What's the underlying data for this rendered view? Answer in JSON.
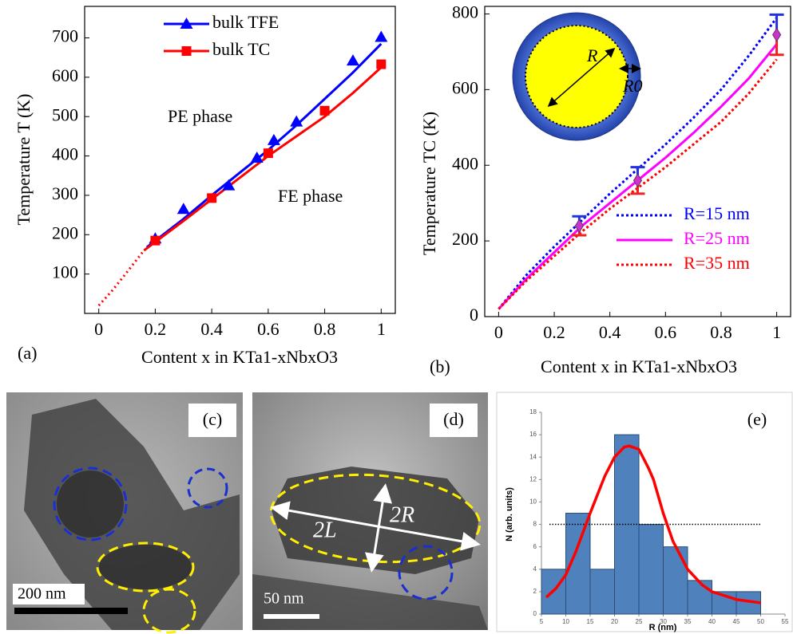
{
  "chart_data": [
    {
      "type": "line",
      "panel": "(a)",
      "xlabel": "Content  x  in KTa1-xNbxO3",
      "ylabel": "Temperature T (K)",
      "xlim": [
        -0.05,
        1.05
      ],
      "ylim": [
        0,
        780
      ],
      "xticks": [
        0,
        0.2,
        0.4,
        0.6,
        0.8,
        1
      ],
      "yticks": [
        100,
        200,
        300,
        400,
        500,
        600,
        700
      ],
      "annotations": [
        "PE phase",
        "FE phase"
      ],
      "series": [
        {
          "name": "bulk TFE",
          "color": "#0000ff",
          "marker": "triangle",
          "x": [
            0.2,
            0.3,
            0.46,
            0.56,
            0.62,
            0.7,
            0.9,
            1
          ],
          "values": [
            190,
            265,
            325,
            395,
            440,
            487,
            642,
            702
          ]
        },
        {
          "name": "bulk TC",
          "color": "#ff0000",
          "marker": "square",
          "x": [
            0.2,
            0.4,
            0.6,
            0.8,
            1
          ],
          "values": [
            185,
            293,
            407,
            515,
            633
          ]
        }
      ],
      "fits": [
        {
          "color": "#0000ff",
          "x": [
            0.17,
            0.3,
            0.4,
            0.5,
            0.6,
            0.7,
            0.8,
            0.9,
            1
          ],
          "values": [
            168,
            240,
            300,
            358,
            415,
            478,
            545,
            612,
            685
          ]
        },
        {
          "color": "#ff0000",
          "x": [
            0.16,
            0.3,
            0.4,
            0.5,
            0.6,
            0.7,
            0.8,
            0.9,
            1
          ],
          "values": [
            160,
            235,
            290,
            345,
            400,
            450,
            500,
            560,
            625
          ]
        },
        {
          "color": "#ff0000",
          "dash": true,
          "x": [
            0,
            0.05,
            0.1,
            0.16
          ],
          "values": [
            20,
            60,
            105,
            160
          ]
        }
      ]
    },
    {
      "type": "line",
      "panel": "(b)",
      "xlabel": "Content x in KTa1-xNbxO3",
      "ylabel": "Temperature TC   (K)",
      "xlim": [
        -0.05,
        1.05
      ],
      "ylim": [
        0,
        820
      ],
      "xticks": [
        0,
        0.2,
        0.4,
        0.6,
        0.8,
        1
      ],
      "yticks": [
        0,
        200,
        400,
        600,
        800
      ],
      "inset_labels": [
        "R",
        "R0"
      ],
      "series": [
        {
          "name": "R=15 nm",
          "color": "#0000ff",
          "dash": true,
          "x": [
            0,
            0.1,
            0.2,
            0.3,
            0.4,
            0.5,
            0.6,
            0.7,
            0.8,
            0.9,
            1
          ],
          "values": [
            20,
            110,
            185,
            255,
            325,
            390,
            455,
            525,
            600,
            690,
            790
          ]
        },
        {
          "name": "R=25 nm",
          "color": "#ff00ff",
          "dash": false,
          "x": [
            0,
            0.1,
            0.2,
            0.3,
            0.4,
            0.5,
            0.6,
            0.7,
            0.8,
            0.9,
            1
          ],
          "values": [
            20,
            100,
            170,
            240,
            300,
            360,
            420,
            485,
            555,
            630,
            720
          ]
        },
        {
          "name": "R=35 nm",
          "color": "#ff0000",
          "dash": true,
          "x": [
            0,
            0.1,
            0.2,
            0.3,
            0.4,
            0.5,
            0.6,
            0.7,
            0.8,
            0.9,
            1
          ],
          "values": [
            20,
            95,
            160,
            225,
            285,
            340,
            395,
            455,
            515,
            590,
            680
          ]
        }
      ],
      "points": {
        "color": "#cc33cc",
        "marker": "diamond",
        "x": [
          0.29,
          0.5,
          1
        ],
        "values": [
          240,
          360,
          745
        ],
        "errors": [
          25,
          35,
          53
        ]
      }
    },
    {
      "type": "histogram",
      "panel": "(e)",
      "xlabel": "R  (nm)",
      "ylabel": "N (arb. units)",
      "bins": [
        5,
        10,
        15,
        20,
        25,
        30,
        35,
        40,
        45,
        50
      ],
      "counts": [
        4,
        9,
        4,
        16,
        8,
        6,
        3,
        2,
        2
      ],
      "color": "#4f81bd",
      "xlim": [
        5,
        55
      ],
      "ylim": [
        0,
        18
      ],
      "xticks": [
        5,
        10,
        15,
        20,
        25,
        30,
        35,
        40,
        45,
        50,
        55
      ],
      "yticks": [
        0,
        2,
        4,
        6,
        8,
        10,
        12,
        14,
        16,
        18
      ],
      "fit": {
        "color": "#ff0000",
        "x": [
          6,
          8,
          10,
          12,
          15,
          18,
          20,
          22,
          23,
          25,
          27,
          28,
          30,
          32,
          35,
          38,
          40,
          45,
          50
        ],
        "values": [
          1.5,
          2.3,
          3.5,
          5.5,
          9,
          12.3,
          14,
          14.9,
          15,
          14.7,
          13,
          12,
          9,
          6.5,
          4,
          2.6,
          2,
          1.3,
          1
        ]
      },
      "hline": 8
    }
  ],
  "images": [
    {
      "panel": "(c)",
      "scale_bar": "200 nm"
    },
    {
      "panel": "(d)",
      "scale_bar": "50 nm",
      "annotations": [
        "2L",
        "2R"
      ]
    }
  ]
}
